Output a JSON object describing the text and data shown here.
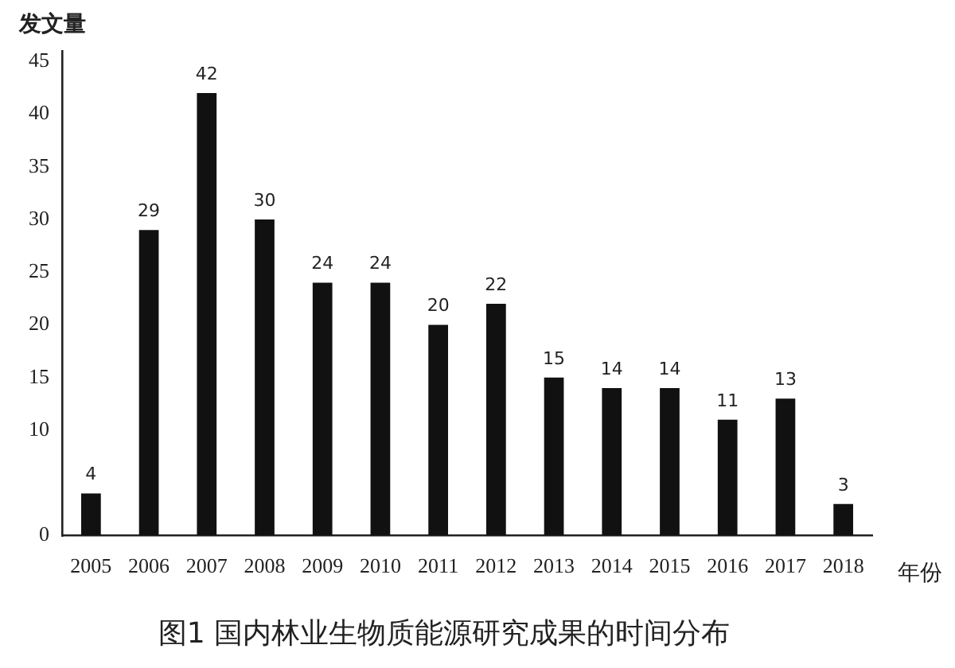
{
  "chart_data": {
    "type": "bar",
    "title": "图1 国内林业生物质能源研究成果的时间分布",
    "xlabel": "年份",
    "ylabel": "发文量",
    "categories": [
      "2005",
      "2006",
      "2007",
      "2008",
      "2009",
      "2010",
      "2011",
      "2012",
      "2013",
      "2014",
      "2015",
      "2016",
      "2017",
      "2018"
    ],
    "values": [
      4,
      29,
      42,
      30,
      24,
      24,
      20,
      22,
      15,
      14,
      14,
      11,
      13,
      3
    ],
    "color": "#111111",
    "ylim": [
      0,
      46
    ],
    "yticks": [
      0,
      10,
      15,
      20,
      25,
      30,
      35,
      40,
      45
    ],
    "data_labels": true
  }
}
